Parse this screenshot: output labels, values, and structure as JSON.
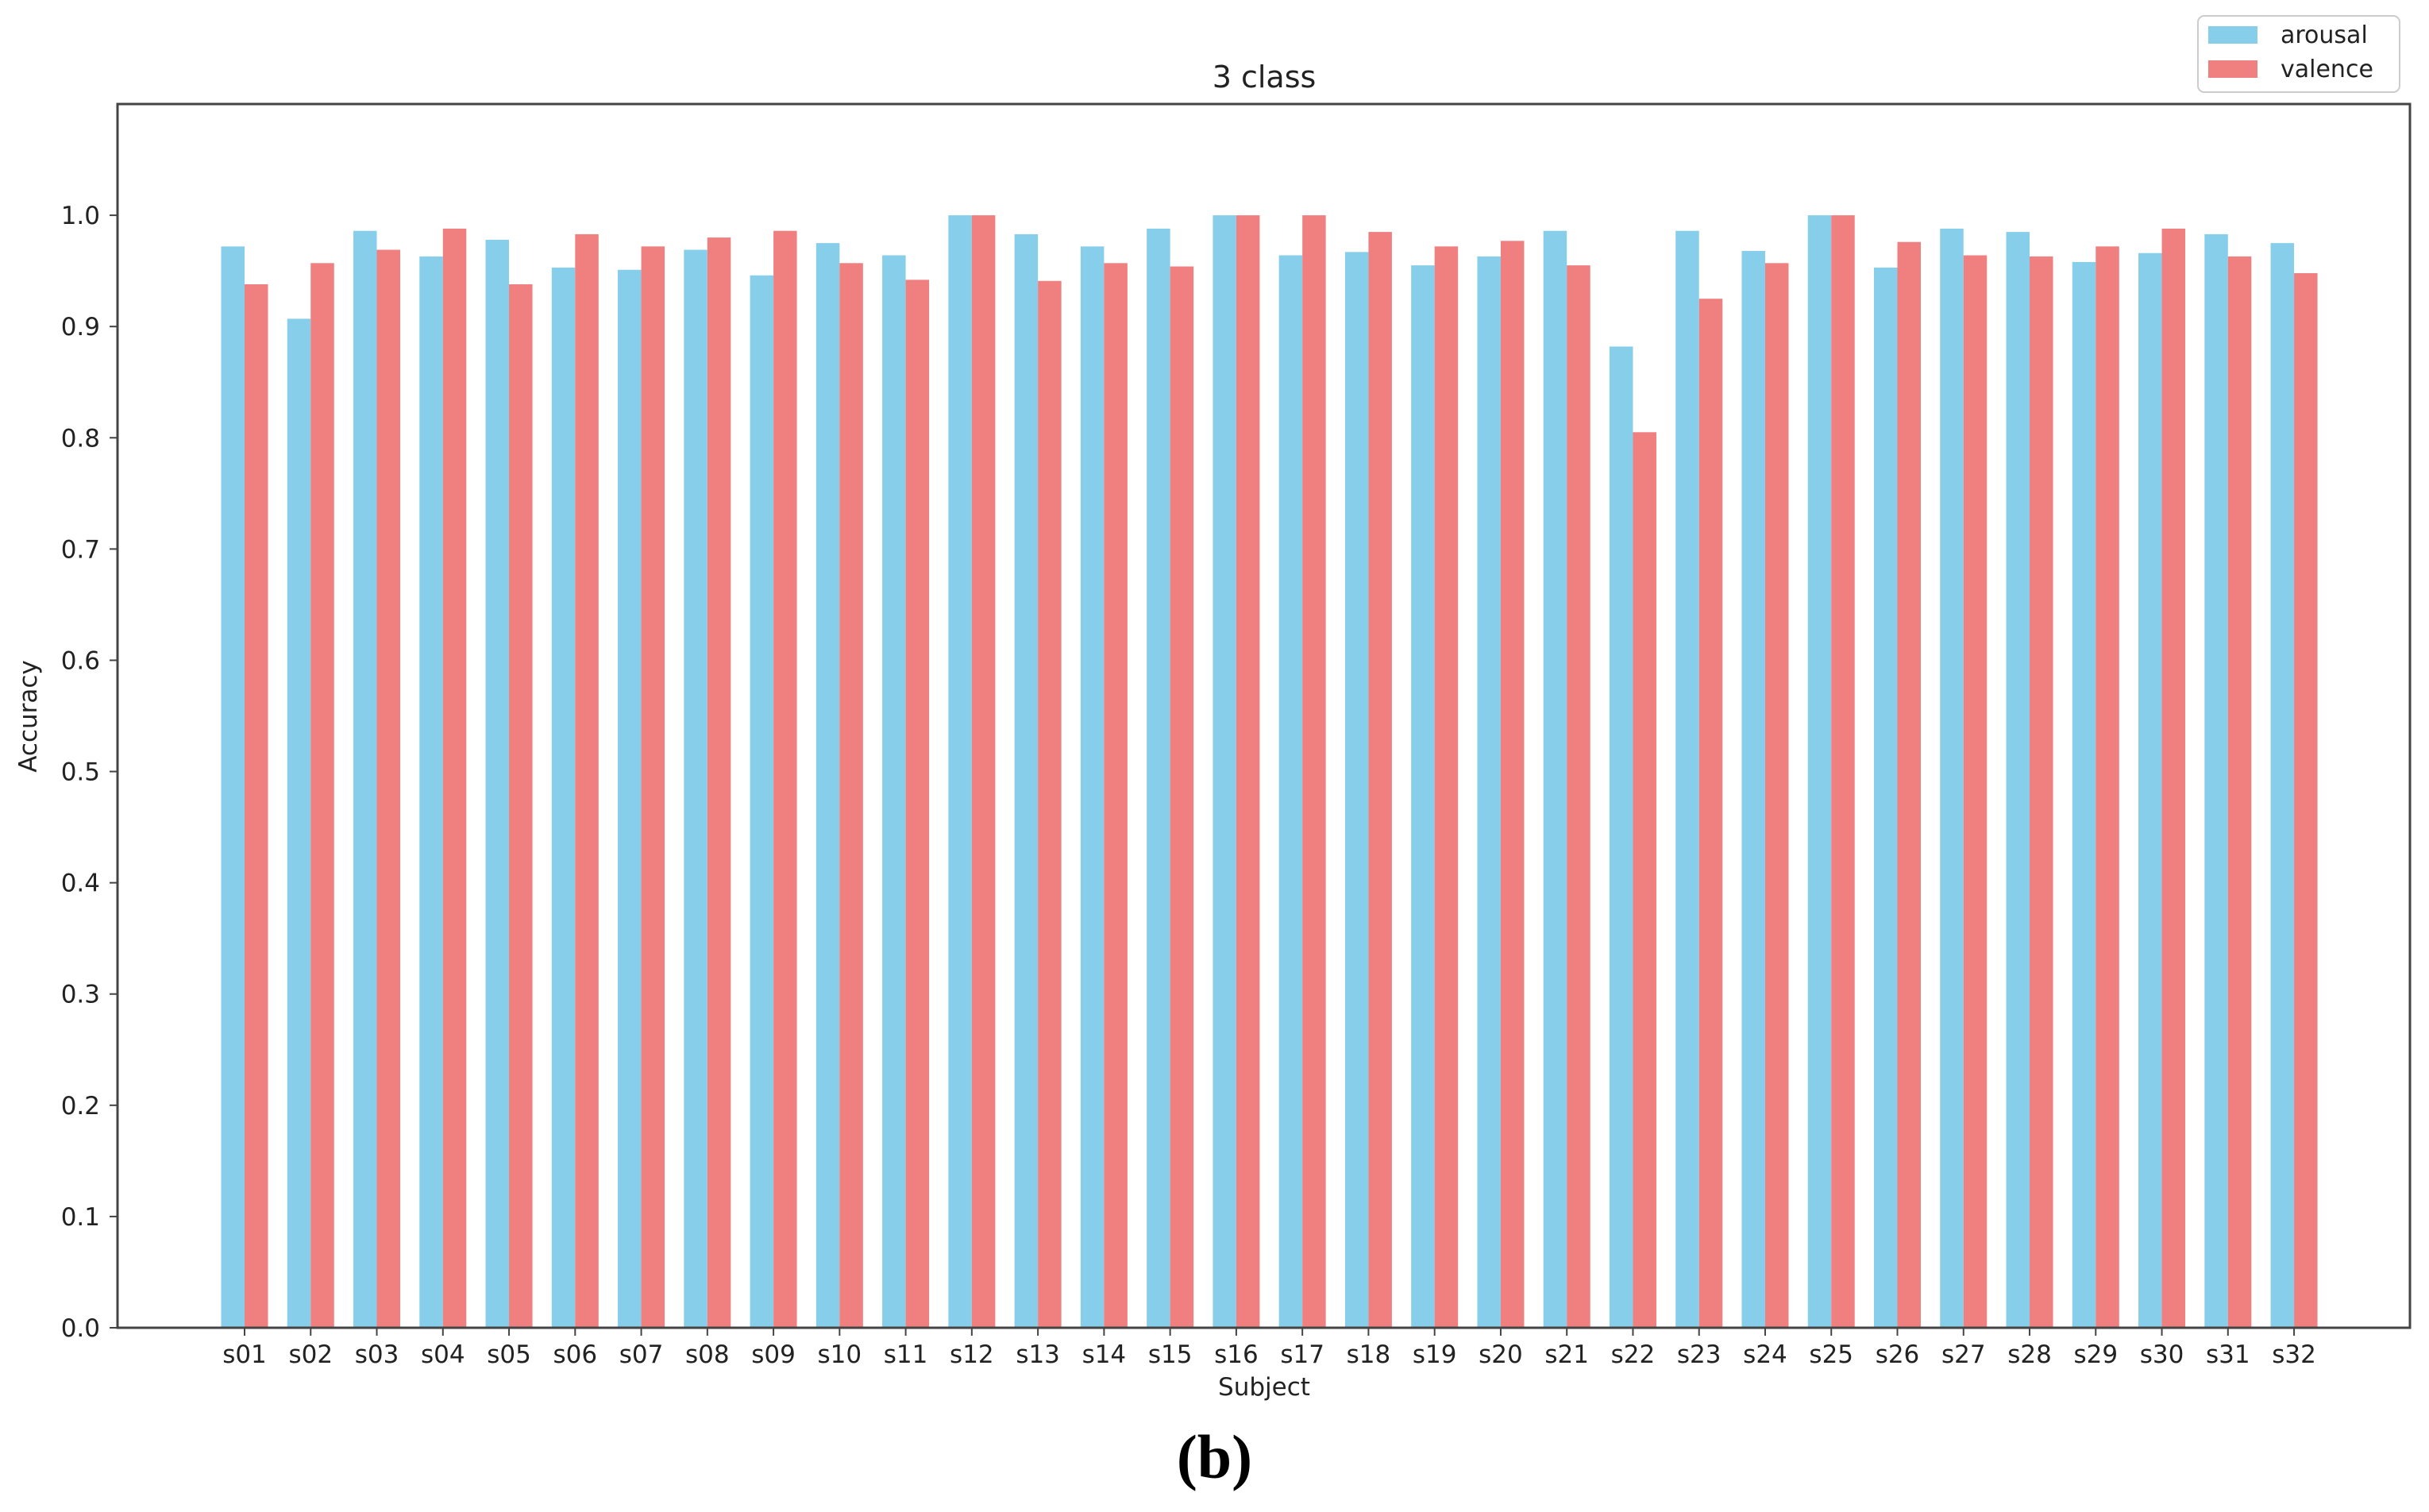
{
  "figure": {
    "caption": "(b)"
  },
  "colors": {
    "arousal": "#87ceeb",
    "valence": "#f08080",
    "axis": "#444444",
    "text": "#222222"
  },
  "chart_data": {
    "type": "bar",
    "title": "3 class",
    "xlabel": "Subject",
    "ylabel": "Accuracy",
    "ylim": [
      0.0,
      1.1
    ],
    "yticks": [
      "0.0",
      "0.1",
      "0.2",
      "0.3",
      "0.4",
      "0.5",
      "0.6",
      "0.7",
      "0.8",
      "0.9",
      "1.0"
    ],
    "grid": false,
    "legend_position": "top-right",
    "categories": [
      "s01",
      "s02",
      "s03",
      "s04",
      "s05",
      "s06",
      "s07",
      "s08",
      "s09",
      "s10",
      "s11",
      "s12",
      "s13",
      "s14",
      "s15",
      "s16",
      "s17",
      "s18",
      "s19",
      "s20",
      "s21",
      "s22",
      "s23",
      "s24",
      "s25",
      "s26",
      "s27",
      "s28",
      "s29",
      "s30",
      "s31",
      "s32"
    ],
    "series": [
      {
        "name": "arousal",
        "values": [
          0.972,
          0.907,
          0.986,
          0.963,
          0.978,
          0.953,
          0.951,
          0.969,
          0.946,
          0.975,
          0.964,
          1.0,
          0.983,
          0.972,
          0.988,
          1.0,
          0.964,
          0.967,
          0.955,
          0.963,
          0.986,
          0.882,
          0.986,
          0.968,
          1.0,
          0.953,
          0.988,
          0.985,
          0.958,
          0.966,
          0.983,
          0.975
        ]
      },
      {
        "name": "valence",
        "values": [
          0.938,
          0.957,
          0.969,
          0.988,
          0.938,
          0.983,
          0.972,
          0.98,
          0.986,
          0.957,
          0.942,
          1.0,
          0.941,
          0.957,
          0.954,
          1.0,
          1.0,
          0.985,
          0.972,
          0.977,
          0.955,
          0.805,
          0.925,
          0.957,
          1.0,
          0.976,
          0.964,
          0.963,
          0.972,
          0.988,
          0.963,
          0.948
        ]
      }
    ]
  }
}
